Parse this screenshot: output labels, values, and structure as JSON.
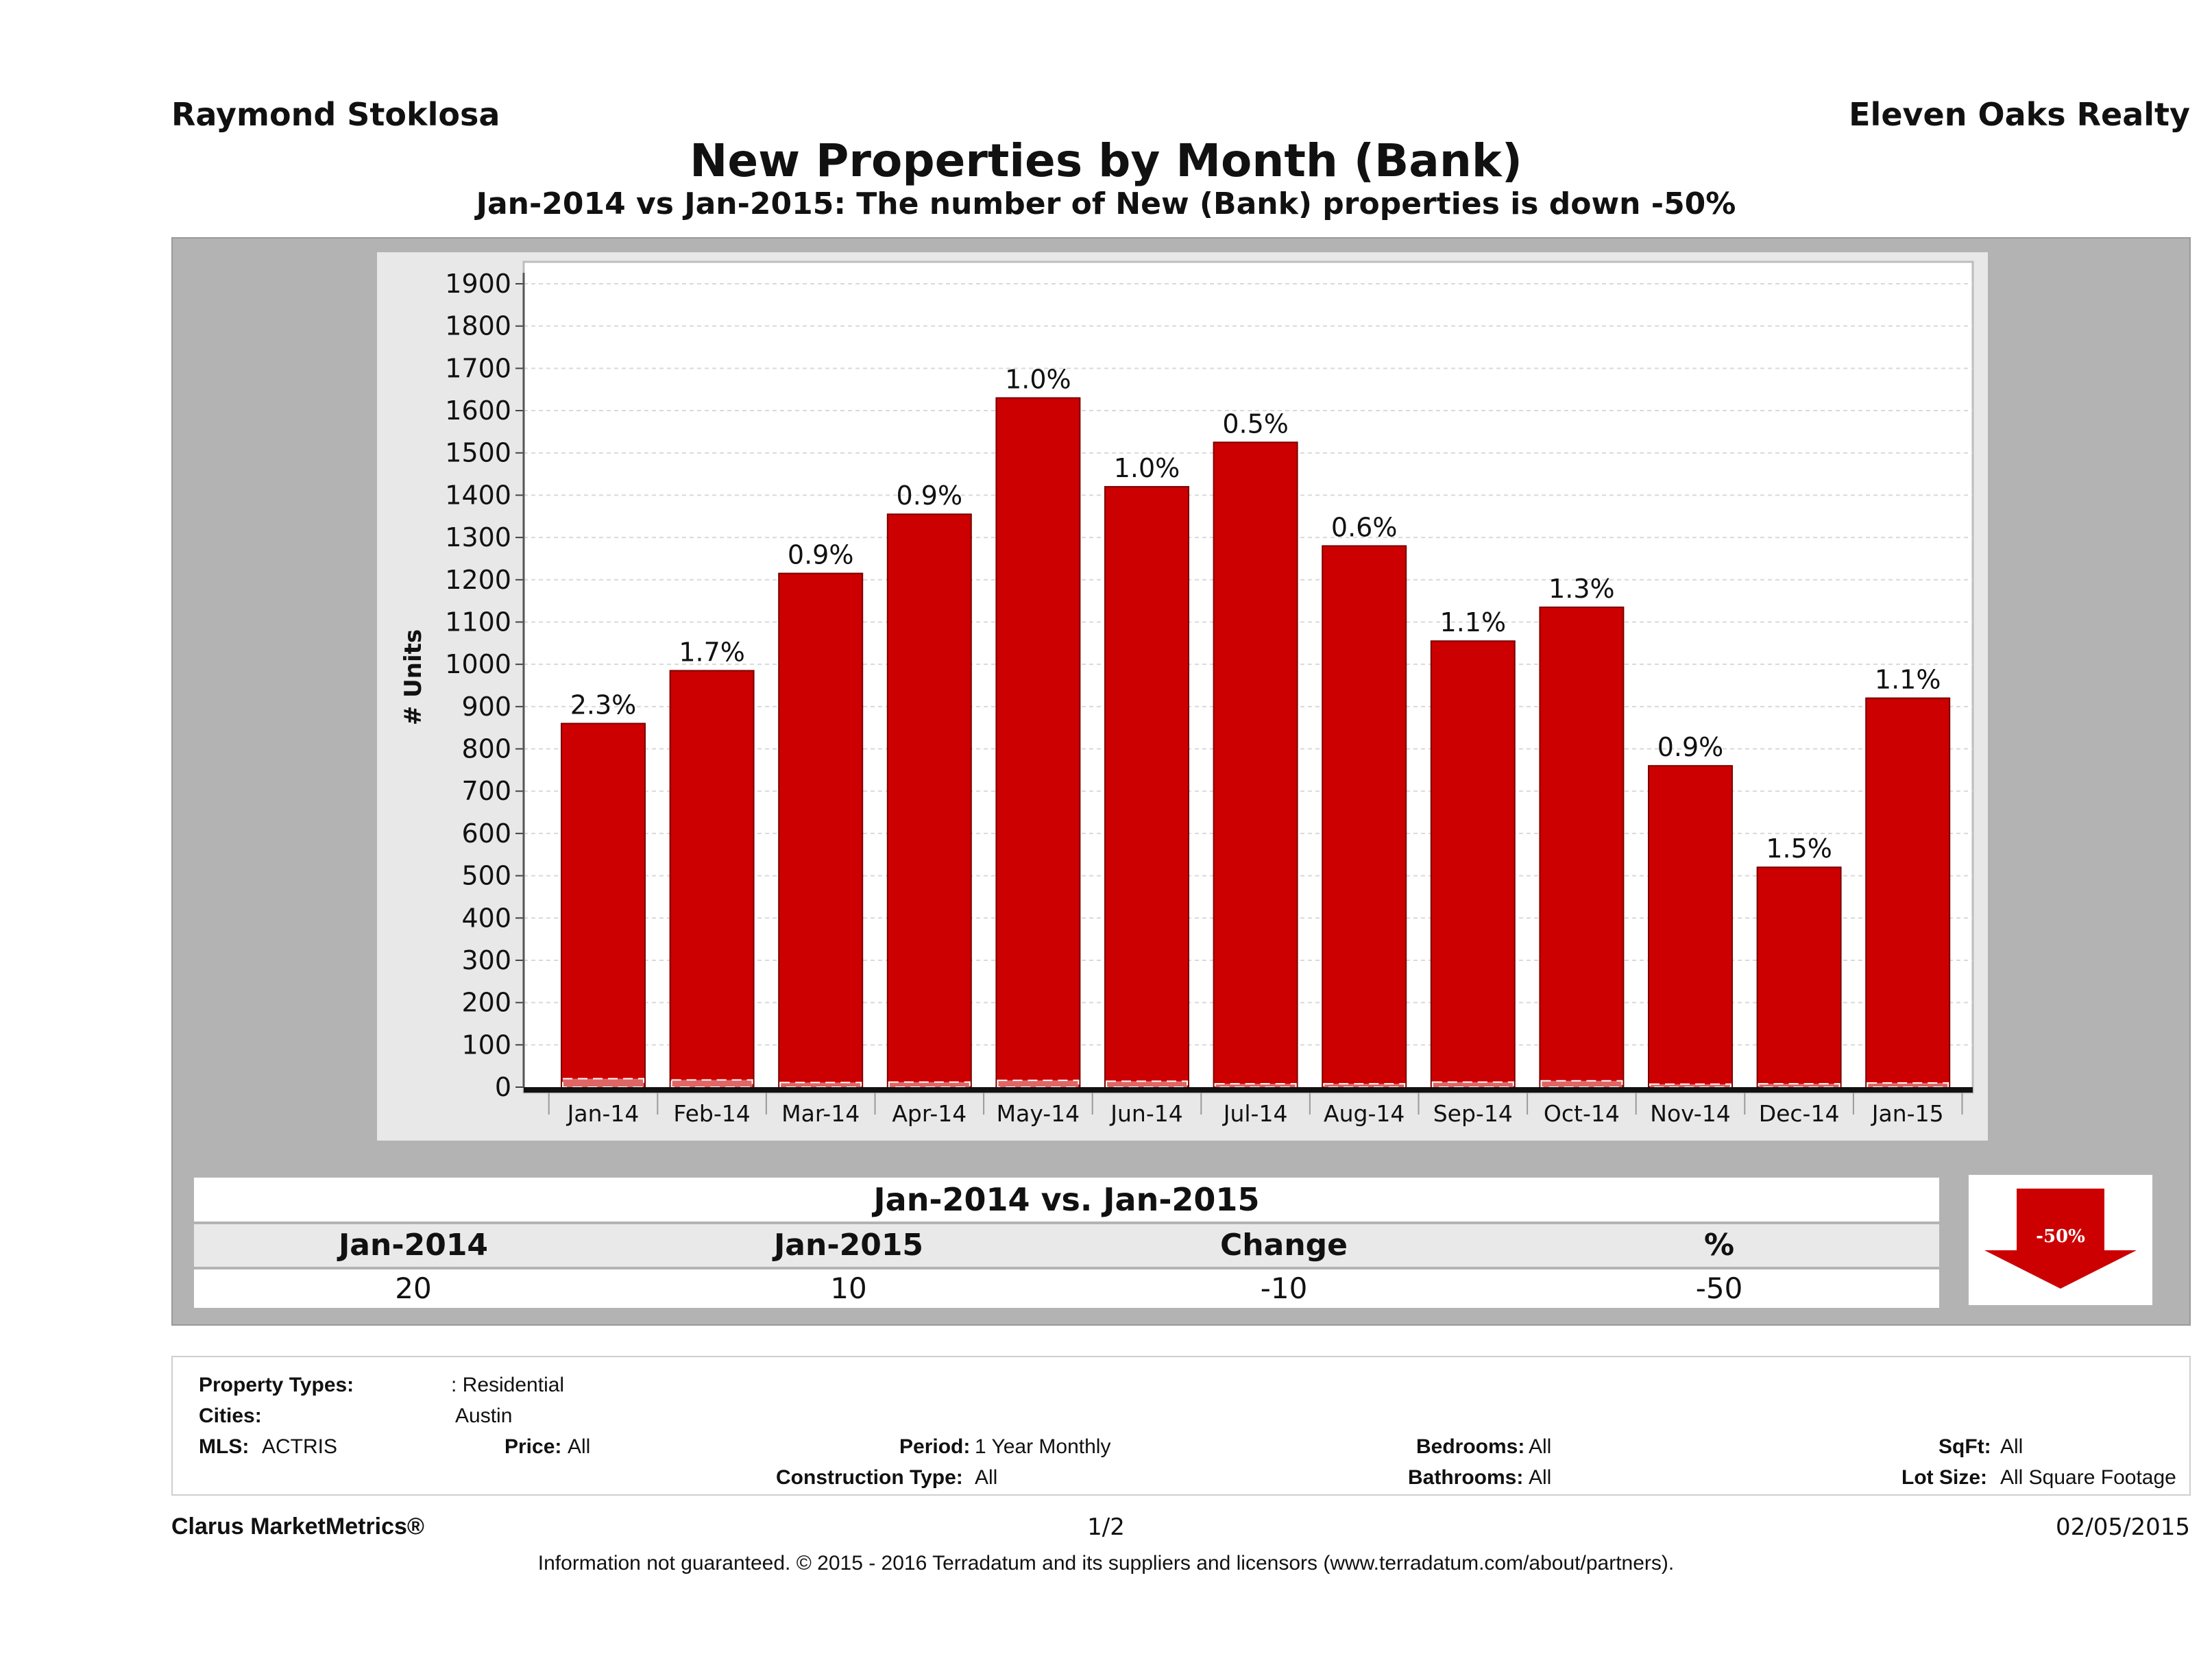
{
  "header": {
    "agent_name": "Raymond Stoklosa",
    "company": "Eleven Oaks Realty",
    "title": "New Properties by Month (Bank)",
    "subtitle": "Jan-2014 vs Jan-2015: The number of New (Bank)  properties is down -50%"
  },
  "chart_data": {
    "type": "bar",
    "ylabel": "# Units",
    "xlabel": "",
    "ylim": [
      0,
      1900
    ],
    "yticks": [
      0,
      100,
      200,
      300,
      400,
      500,
      600,
      700,
      800,
      900,
      1000,
      1100,
      1200,
      1300,
      1400,
      1500,
      1600,
      1700,
      1800,
      1900
    ],
    "grid": true,
    "categories": [
      "Jan-14",
      "Feb-14",
      "Mar-14",
      "Apr-14",
      "May-14",
      "Jun-14",
      "Jul-14",
      "Aug-14",
      "Sep-14",
      "Oct-14",
      "Nov-14",
      "Dec-14",
      "Jan-15"
    ],
    "values": [
      860,
      985,
      1215,
      1355,
      1630,
      1420,
      1525,
      1280,
      1055,
      1135,
      760,
      520,
      920
    ],
    "bank_values": [
      20,
      17,
      11,
      12,
      16,
      14,
      8,
      8,
      12,
      15,
      7,
      8,
      10
    ],
    "data_labels": [
      "2.3%",
      "1.7%",
      "0.9%",
      "0.9%",
      "1.0%",
      "1.0%",
      "0.5%",
      "0.6%",
      "1.1%",
      "1.3%",
      "0.9%",
      "1.5%",
      "1.1%"
    ],
    "bar_color": "#cc0000"
  },
  "comparison": {
    "title": "Jan-2014 vs. Jan-2015",
    "headers": [
      "Jan-2014",
      "Jan-2015",
      "Change",
      "%"
    ],
    "values": [
      "20",
      "10",
      "-10",
      "-50"
    ],
    "badge": "-50%"
  },
  "filters": {
    "property_types_label": "Property Types:",
    "property_types_value": ": Residential",
    "cities_label": "Cities:",
    "cities_value": "Austin",
    "mls_label": "MLS:",
    "mls_value": "ACTRIS",
    "price_label": "Price:",
    "price_value": "All",
    "period_label": "Period:",
    "period_value": "1 Year Monthly",
    "construction_label": "Construction Type:",
    "construction_value": "All",
    "bedrooms_label": "Bedrooms:",
    "bedrooms_value": "All",
    "bathrooms_label": "Bathrooms:",
    "bathrooms_value": "All",
    "sqft_label": "SqFt:",
    "sqft_value": "All",
    "lotsize_label": "Lot Size:",
    "lotsize_value": "All Square Footage"
  },
  "footer": {
    "brand": "Clarus MarketMetrics®",
    "page": "1/2",
    "date": "02/05/2015",
    "disclaimer": "Information not guaranteed. © 2015 - 2016 Terradatum and its suppliers and licensors (www.terradatum.com/about/partners)."
  }
}
